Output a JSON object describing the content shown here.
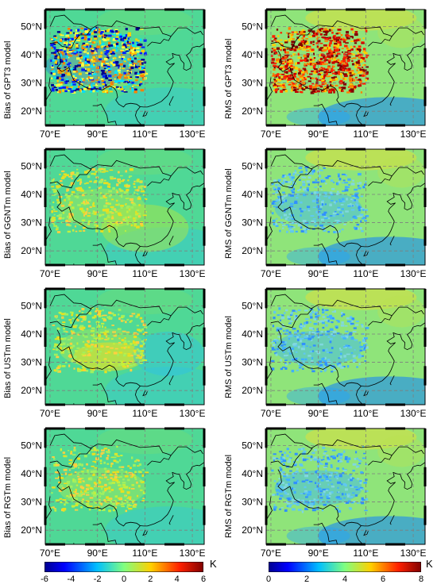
{
  "panels": [
    {
      "ylabel": "Bias of GPT3 model",
      "variable": "bias",
      "x_ticks": [
        "70°E",
        "90°E",
        "110°E",
        "130°E"
      ],
      "y_ticks": [
        "50°N",
        "40°N",
        "30°N",
        "20°N"
      ]
    },
    {
      "ylabel": "RMS of GPT3 model",
      "variable": "rms",
      "x_ticks": [
        "70°E",
        "90°E",
        "110°E",
        "130°E"
      ],
      "y_ticks": [
        "50°N",
        "40°N",
        "30°N",
        "20°N"
      ]
    },
    {
      "ylabel": "Bias of GGNTm model",
      "variable": "bias",
      "x_ticks": [
        "70°E",
        "90°E",
        "110°E",
        "130°E"
      ],
      "y_ticks": [
        "50°N",
        "40°N",
        "30°N",
        "20°N"
      ]
    },
    {
      "ylabel": "RMS of GGNTm model",
      "variable": "rms",
      "x_ticks": [
        "70°E",
        "90°E",
        "110°E",
        "130°E"
      ],
      "y_ticks": [
        "50°N",
        "40°N",
        "30°N",
        "20°N"
      ]
    },
    {
      "ylabel": "Bias of USTm model",
      "variable": "bias",
      "x_ticks": [
        "70°E",
        "90°E",
        "110°E",
        "130°E"
      ],
      "y_ticks": [
        "50°N",
        "40°N",
        "30°N",
        "20°N"
      ]
    },
    {
      "ylabel": "RMS of USTm model",
      "variable": "rms",
      "x_ticks": [
        "70°E",
        "90°E",
        "110°E",
        "130°E"
      ],
      "y_ticks": [
        "50°N",
        "40°N",
        "30°N",
        "20°N"
      ]
    },
    {
      "ylabel": "Bias of RGTm model",
      "variable": "bias",
      "x_ticks": [
        "70°E",
        "90°E",
        "110°E",
        "130°E"
      ],
      "y_ticks": [
        "50°N",
        "40°N",
        "30°N",
        "20°N"
      ]
    },
    {
      "ylabel": "RMS of RGTm model",
      "variable": "rms",
      "x_ticks": [
        "70°E",
        "90°E",
        "110°E",
        "130°E"
      ],
      "y_ticks": [
        "50°N",
        "40°N",
        "30°N",
        "20°N"
      ]
    }
  ],
  "colorbars": {
    "bias": {
      "ticks": [
        "-6",
        "-4",
        "-2",
        "0",
        "2",
        "4",
        "6"
      ],
      "unit": "K",
      "range": [
        -6,
        6
      ]
    },
    "rms": {
      "ticks": [
        "0",
        "2",
        "4",
        "6",
        "8"
      ],
      "unit": "K",
      "range": [
        0,
        8
      ]
    }
  },
  "colors": {
    "scale": [
      "#00008f",
      "#0000ff",
      "#0080ff",
      "#00ffff",
      "#80ff80",
      "#ffff00",
      "#ff8000",
      "#ff0000",
      "#800000"
    ],
    "bias_background": "#4fd896",
    "rms_background": "#8fe47a",
    "coastline": "#000000",
    "grid": "#7f7f7f"
  }
}
